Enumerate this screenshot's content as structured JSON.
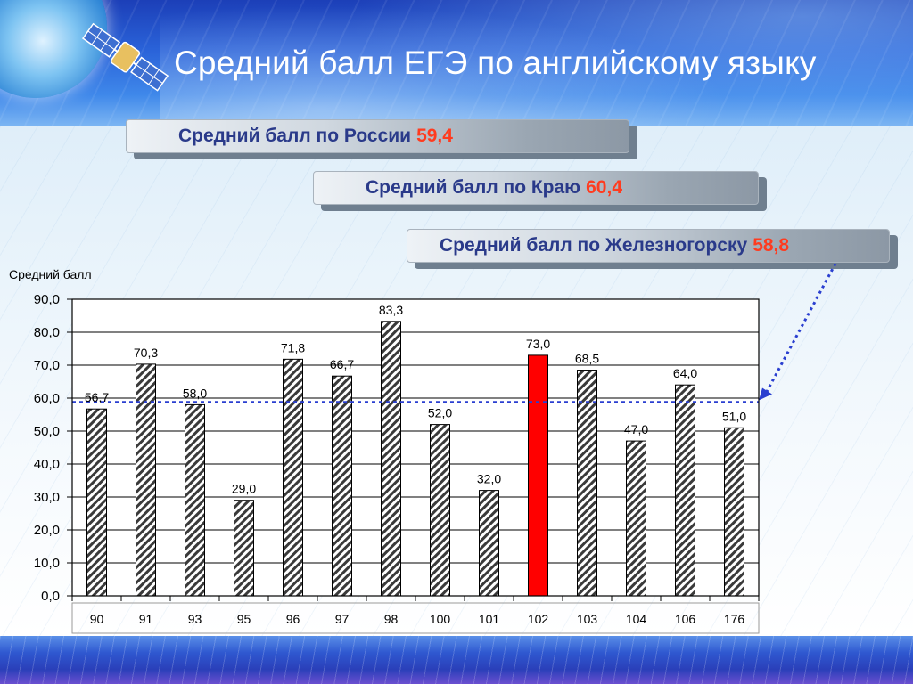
{
  "slide": {
    "title": "Средний балл ЕГЭ по английскому языку"
  },
  "stats": [
    {
      "label": "Средний балл по России",
      "value": "59,4"
    },
    {
      "label": "Средний балл по Краю",
      "value": "60,4"
    },
    {
      "label": "Средний балл по Железногорску",
      "value": "58,8"
    }
  ],
  "colors": {
    "normal_bar_hatch": "#2a2a2a",
    "highlight_bar": "#ff0000",
    "reference_line": "#2a3fd0",
    "stat_value": "#ff3b1f",
    "stat_label": "#2a3a8a"
  },
  "chart_data": {
    "type": "bar",
    "ylabel": "Средний балл",
    "xlabel": "",
    "ylim": [
      0,
      90
    ],
    "ytick_step": 10,
    "grid": "horizontal",
    "categories": [
      "90",
      "91",
      "93",
      "95",
      "96",
      "97",
      "98",
      "100",
      "101",
      "102",
      "103",
      "104",
      "106",
      "176"
    ],
    "values": [
      56.7,
      70.3,
      58.0,
      29.0,
      71.8,
      66.7,
      83.3,
      52.0,
      32.0,
      73.0,
      68.5,
      47.0,
      64.0,
      51.0
    ],
    "value_labels": [
      "56,7",
      "70,3",
      "58,0",
      "29,0",
      "71,8",
      "66,7",
      "83,3",
      "52,0",
      "32,0",
      "73,0",
      "68,5",
      "47,0",
      "64,0",
      "51,0"
    ],
    "highlight_category": "102",
    "reference_line": {
      "value": 58.8,
      "style": "dotted"
    }
  }
}
